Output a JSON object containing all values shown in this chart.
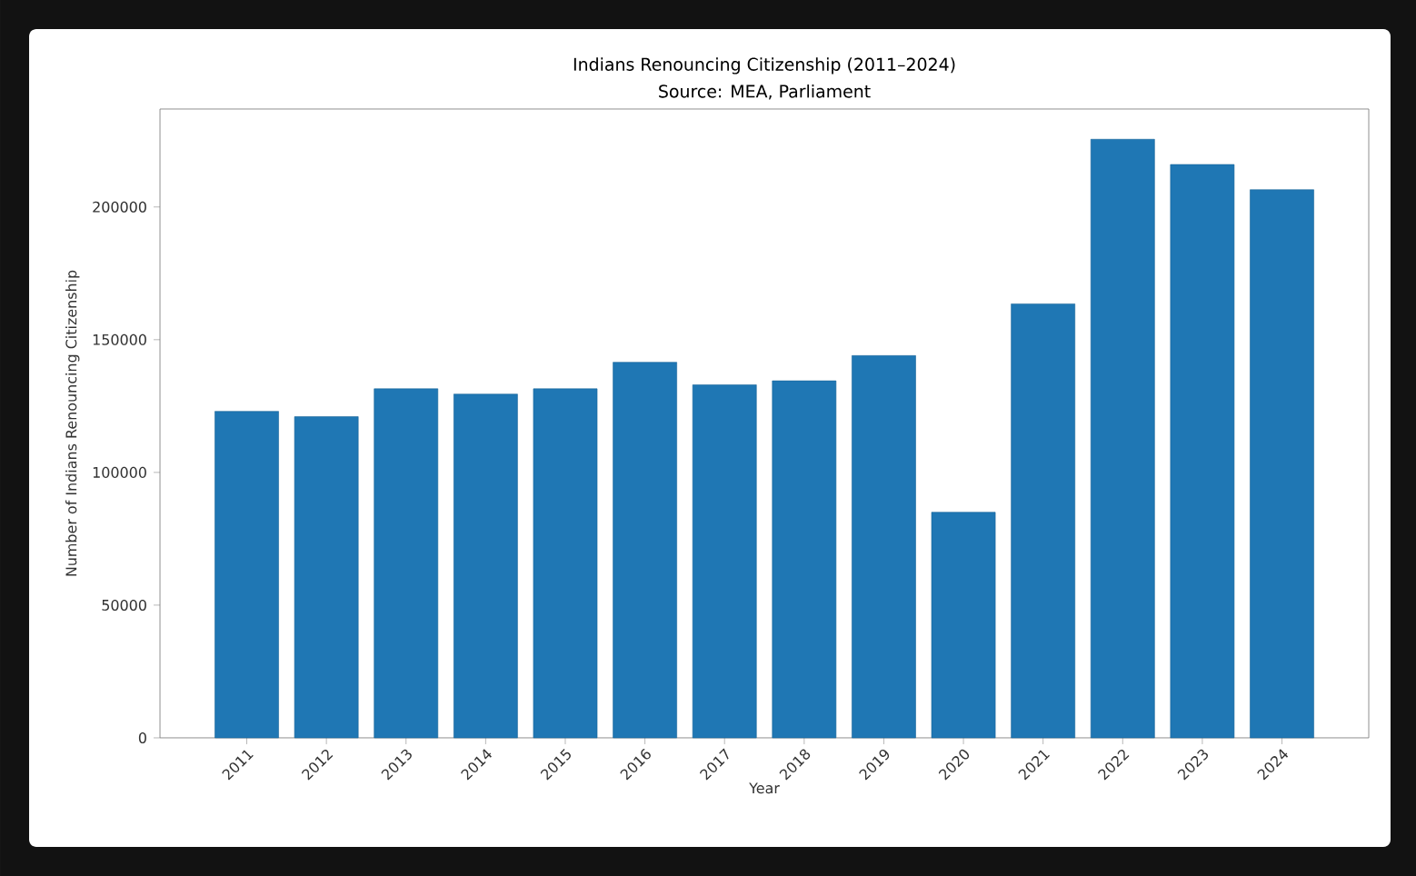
{
  "chart_data": {
    "type": "bar",
    "title": "Indians Renouncing Citizenship (2011–2024)",
    "subtitle": "Source: MEA, Parliament",
    "xlabel": "Year",
    "ylabel": "Number of Indians Renouncing Citizenship",
    "categories": [
      "2011",
      "2012",
      "2013",
      "2014",
      "2015",
      "2016",
      "2017",
      "2018",
      "2019",
      "2020",
      "2021",
      "2022",
      "2023",
      "2024"
    ],
    "values": [
      123000,
      121000,
      131500,
      129500,
      131500,
      141500,
      133000,
      134500,
      144000,
      85000,
      163500,
      225500,
      216000,
      206500
    ],
    "color": "#1f77b4",
    "ylim": [
      0,
      236900
    ],
    "yticks": [
      0,
      50000,
      100000,
      150000,
      200000
    ],
    "grid": false
  }
}
